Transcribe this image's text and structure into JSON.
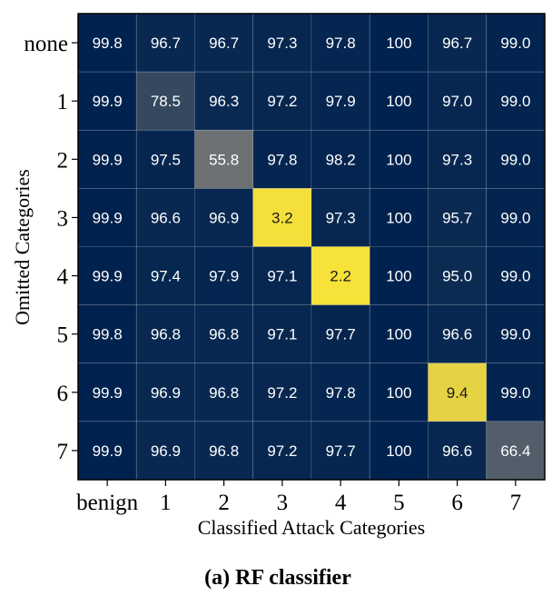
{
  "chart_data": {
    "type": "heatmap",
    "title": "",
    "xlabel": "Classified Attack Categories",
    "ylabel": "Omitted Categories",
    "x_categories": [
      "benign",
      "1",
      "2",
      "3",
      "4",
      "5",
      "6",
      "7"
    ],
    "y_categories": [
      "none",
      "1",
      "2",
      "3",
      "4",
      "5",
      "6",
      "7"
    ],
    "values": [
      [
        99.8,
        96.7,
        96.7,
        97.3,
        97.8,
        100,
        96.7,
        99.0
      ],
      [
        99.9,
        78.5,
        96.3,
        97.2,
        97.9,
        100,
        97.0,
        99.0
      ],
      [
        99.9,
        97.5,
        55.8,
        97.8,
        98.2,
        100,
        97.3,
        99.0
      ],
      [
        99.9,
        96.6,
        96.9,
        3.2,
        97.3,
        100,
        95.7,
        99.0
      ],
      [
        99.9,
        97.4,
        97.9,
        97.1,
        2.2,
        100,
        95.0,
        99.0
      ],
      [
        99.8,
        96.8,
        96.8,
        97.1,
        97.7,
        100,
        96.6,
        99.0
      ],
      [
        99.9,
        96.9,
        96.8,
        97.2,
        97.8,
        100,
        9.4,
        99.0
      ],
      [
        99.9,
        96.9,
        96.8,
        97.2,
        97.7,
        100,
        96.6,
        66.4
      ]
    ],
    "labels": [
      [
        "99.8",
        "96.7",
        "96.7",
        "97.3",
        "97.8",
        "100",
        "96.7",
        "99.0"
      ],
      [
        "99.9",
        "78.5",
        "96.3",
        "97.2",
        "97.9",
        "100",
        "97.0",
        "99.0"
      ],
      [
        "99.9",
        "97.5",
        "55.8",
        "97.8",
        "98.2",
        "100",
        "97.3",
        "99.0"
      ],
      [
        "99.9",
        "96.6",
        "96.9",
        "3.2",
        "97.3",
        "100",
        "95.7",
        "99.0"
      ],
      [
        "99.9",
        "97.4",
        "97.9",
        "97.1",
        "2.2",
        "100",
        "95.0",
        "99.0"
      ],
      [
        "99.8",
        "96.8",
        "96.8",
        "97.1",
        "97.7",
        "100",
        "96.6",
        "99.0"
      ],
      [
        "99.9",
        "96.9",
        "96.8",
        "97.2",
        "97.8",
        "100",
        "9.4",
        "99.0"
      ],
      [
        "99.9",
        "96.9",
        "96.8",
        "97.2",
        "97.7",
        "100",
        "96.6",
        "66.4"
      ]
    ],
    "colormap": "cividis_reversed",
    "color_low": "#fde737",
    "color_mid": "#7c7b78",
    "color_high": "#00224e",
    "value_range": [
      0,
      100
    ],
    "grid": true
  },
  "caption": "(a) RF classifier"
}
